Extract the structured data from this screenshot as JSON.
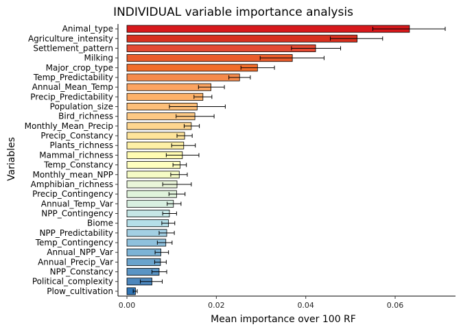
{
  "chart_data": {
    "type": "bar",
    "orientation": "horizontal",
    "title": "INDIVIDUAL variable importance analysis",
    "xlabel": "Mean importance over 100 RF",
    "ylabel": "Variables",
    "xlim": [
      -0.002,
      0.0735
    ],
    "xticks": [
      0.0,
      0.02,
      0.04,
      0.06
    ],
    "xtick_labels": [
      "0.00",
      "0.02",
      "0.04",
      "0.06"
    ],
    "grid": false,
    "error_bars": true,
    "color_scale": "red-to-blue gradient (most to least important)",
    "categories": [
      "Animal_type",
      "Agriculture_intensity",
      "Settlement_pattern",
      "Milking",
      "Major_crop_type",
      "Temp_Predictability",
      "Annual_Mean_Temp",
      "Precip_Predictability",
      "Population_size",
      "Bird_richness",
      "Monthly_Mean_Precip",
      "Precip_Constancy",
      "Plants_richness",
      "Mammal_richness",
      "Temp_Constancy",
      "Monthly_mean_NPP",
      "Amphibian_richness",
      "Precip_Contingency",
      "Annual_Temp_Var",
      "NPP_Contingency",
      "Biome",
      "NPP_Predictability",
      "Temp_Contingency",
      "Annual_NPP_Var",
      "Annual_Precip_Var",
      "NPP_Constancy",
      "Political_complexity",
      "Plow_cultivation"
    ],
    "values": [
      0.0632,
      0.0515,
      0.0422,
      0.037,
      0.0292,
      0.0252,
      0.0188,
      0.017,
      0.0157,
      0.0152,
      0.0144,
      0.0129,
      0.0127,
      0.0124,
      0.0119,
      0.0117,
      0.0112,
      0.0111,
      0.0104,
      0.0095,
      0.0093,
      0.0089,
      0.0087,
      0.0076,
      0.0075,
      0.0072,
      0.0056,
      0.0019
    ],
    "error_low": [
      0.055,
      0.0455,
      0.0368,
      0.0298,
      0.0255,
      0.0228,
      0.016,
      0.015,
      0.0095,
      0.011,
      0.0128,
      0.0112,
      0.01,
      0.0088,
      0.0103,
      0.0098,
      0.008,
      0.0094,
      0.009,
      0.008,
      0.0078,
      0.0072,
      0.0068,
      0.0063,
      0.0062,
      0.0056,
      0.003,
      0.0014
    ],
    "error_high": [
      0.0712,
      0.0572,
      0.0478,
      0.0441,
      0.033,
      0.0276,
      0.0218,
      0.019,
      0.022,
      0.0195,
      0.0162,
      0.0146,
      0.0153,
      0.0161,
      0.0133,
      0.0135,
      0.0144,
      0.013,
      0.0121,
      0.0111,
      0.0107,
      0.0106,
      0.0101,
      0.0093,
      0.0088,
      0.0089,
      0.0079,
      0.0023
    ],
    "colors": [
      "#d7191c",
      "#d7301f",
      "#e34a33",
      "#ea5d2c",
      "#f16d2b",
      "#f58a4b",
      "#fca462",
      "#fdb168",
      "#fdbf79",
      "#fdc984",
      "#fed68f",
      "#fee49b",
      "#fdf0a6",
      "#fffbb2",
      "#ffffbf",
      "#f5fbc5",
      "#e9f5d9",
      "#e0f3db",
      "#d8efe0",
      "#c6e7e6",
      "#b5dfe8",
      "#a3cfe3",
      "#8fc1dd",
      "#7cb3d6",
      "#6aa3cc",
      "#5a94c4",
      "#4c86bc",
      "#2f74b5"
    ]
  }
}
